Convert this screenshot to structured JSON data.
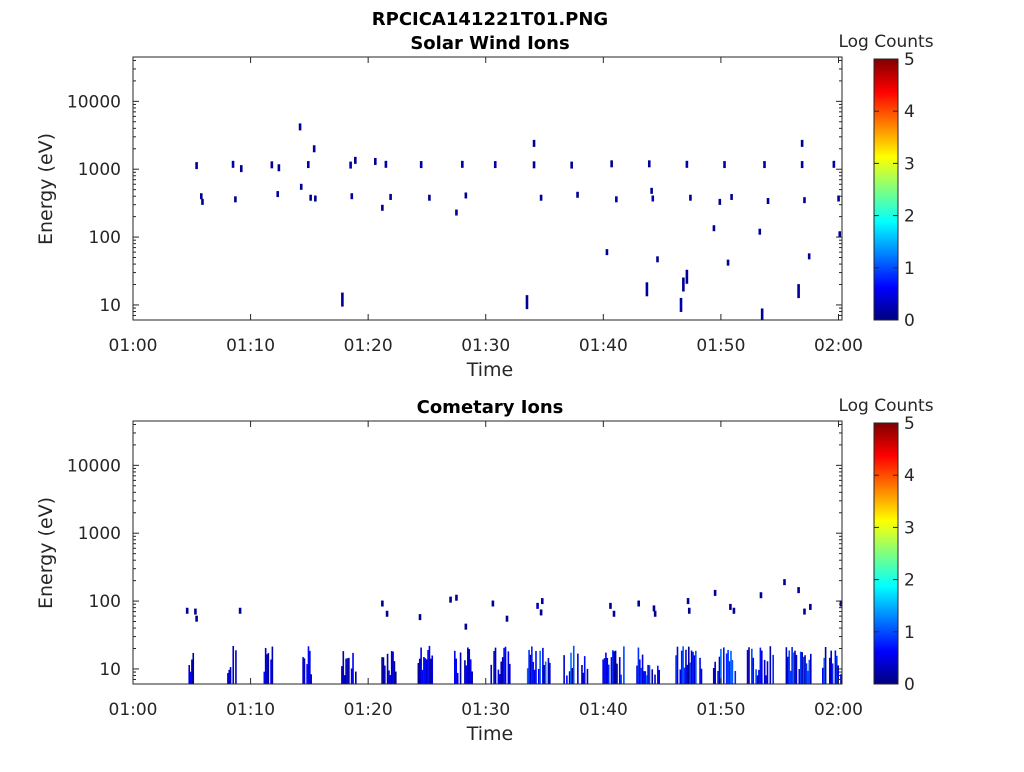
{
  "figure": {
    "filename_title": "RPCICA141221T01.PNG"
  },
  "colormap": {
    "name": "jet",
    "stops": [
      "#00007f",
      "#0000ff",
      "#007fff",
      "#00ffff",
      "#7fff7f",
      "#ffff00",
      "#ff7f00",
      "#ff0000",
      "#7f0000"
    ]
  },
  "chart_data": [
    {
      "type": "heatmap",
      "title": "Solar Wind Ions",
      "xlabel": "Time",
      "ylabel": "Energy (eV)",
      "x_unit": "minutes after 01:00",
      "xlim": [
        0,
        60.3
      ],
      "ylim": [
        6,
        45000
      ],
      "y_scale": "log",
      "xticks": [
        0,
        10,
        20,
        30,
        40,
        50,
        60
      ],
      "xtick_labels": [
        "01:00",
        "01:10",
        "01:20",
        "01:30",
        "01:40",
        "01:50",
        "02:00"
      ],
      "yticks": [
        10,
        100,
        1000,
        10000
      ],
      "ytick_labels": [
        "10",
        "100",
        "1000",
        "10000"
      ],
      "colorbar": {
        "label": "Log Counts",
        "range": [
          0,
          5
        ],
        "ticks": [
          "0",
          "1",
          "2",
          "3",
          "4",
          "5"
        ]
      },
      "cells": [
        [
          5.4,
          1130,
          0.1
        ],
        [
          5.8,
          400,
          0.1
        ],
        [
          5.9,
          330,
          0.1
        ],
        [
          8.5,
          1180,
          0.2
        ],
        [
          8.7,
          360,
          0.1
        ],
        [
          9.2,
          1020,
          0.1
        ],
        [
          11.8,
          1160,
          0.2
        ],
        [
          12.3,
          430,
          0.2
        ],
        [
          12.4,
          1050,
          0.1
        ],
        [
          14.2,
          4200,
          0.1
        ],
        [
          14.3,
          550,
          0.1
        ],
        [
          14.9,
          1170,
          0.2
        ],
        [
          15.1,
          380,
          0.1
        ],
        [
          15.4,
          2000,
          0.1
        ],
        [
          15.5,
          370,
          0.1
        ],
        [
          17.8,
          12,
          0.1
        ],
        [
          18.5,
          1150,
          0.2
        ],
        [
          18.6,
          400,
          0.2
        ],
        [
          18.9,
          1350,
          0.1
        ],
        [
          20.6,
          1300,
          0.1
        ],
        [
          21.2,
          270,
          0.1
        ],
        [
          21.5,
          1180,
          0.2
        ],
        [
          21.9,
          390,
          0.1
        ],
        [
          24.5,
          1170,
          0.2
        ],
        [
          25.2,
          380,
          0.1
        ],
        [
          27.5,
          230,
          0.1
        ],
        [
          28.0,
          1180,
          0.2
        ],
        [
          28.3,
          410,
          0.1
        ],
        [
          30.8,
          1170,
          0.2
        ],
        [
          33.5,
          11,
          0.1
        ],
        [
          34.1,
          2400,
          0.1
        ],
        [
          34.1,
          1160,
          0.1
        ],
        [
          34.7,
          380,
          0.1
        ],
        [
          37.3,
          1150,
          0.1
        ],
        [
          37.8,
          420,
          0.1
        ],
        [
          40.3,
          60,
          0.1
        ],
        [
          40.7,
          1200,
          0.1
        ],
        [
          41.1,
          360,
          0.2
        ],
        [
          43.7,
          17,
          0.1
        ],
        [
          43.9,
          1200,
          0.1
        ],
        [
          44.1,
          480,
          0.1
        ],
        [
          44.2,
          370,
          0.2
        ],
        [
          44.6,
          47,
          0.1
        ],
        [
          46.6,
          10,
          0.2
        ],
        [
          46.8,
          20,
          0.1
        ],
        [
          47.1,
          26,
          0.1
        ],
        [
          47.1,
          1180,
          0.2
        ],
        [
          47.4,
          380,
          0.1
        ],
        [
          49.4,
          135,
          0.1
        ],
        [
          49.9,
          330,
          0.1
        ],
        [
          50.3,
          1170,
          0.2
        ],
        [
          50.6,
          42,
          0.1
        ],
        [
          50.9,
          390,
          0.1
        ],
        [
          53.3,
          120,
          0.1
        ],
        [
          53.5,
          7,
          0.1
        ],
        [
          53.7,
          1170,
          0.2
        ],
        [
          54.0,
          340,
          0.1
        ],
        [
          56.6,
          16,
          0.1
        ],
        [
          56.9,
          2400,
          0.1
        ],
        [
          56.9,
          1170,
          0.2
        ],
        [
          57.1,
          350,
          0.1
        ],
        [
          57.5,
          52,
          0.1
        ],
        [
          59.6,
          1180,
          0.2
        ],
        [
          60.0,
          370,
          0.1
        ],
        [
          60.1,
          110,
          0.1
        ]
      ]
    },
    {
      "type": "heatmap",
      "title": "Cometary Ions",
      "xlabel": "Time",
      "ylabel": "Energy (eV)",
      "x_unit": "minutes after 01:00",
      "xlim": [
        0,
        60.3
      ],
      "ylim": [
        6,
        45000
      ],
      "y_scale": "log",
      "xticks": [
        0,
        10,
        20,
        30,
        40,
        50,
        60
      ],
      "xtick_labels": [
        "01:00",
        "01:10",
        "01:20",
        "01:30",
        "01:40",
        "01:50",
        "02:00"
      ],
      "yticks": [
        10,
        100,
        1000,
        10000
      ],
      "ytick_labels": [
        "10",
        "100",
        "1000",
        "10000"
      ],
      "colorbar": {
        "label": "Log Counts",
        "range": [
          0,
          5
        ],
        "ticks": [
          "0",
          "1",
          "2",
          "3",
          "4",
          "5"
        ]
      },
      "cells": [
        [
          4.6,
          72,
          0.1
        ],
        [
          5.3,
          70,
          0.1
        ],
        [
          5.4,
          55,
          0.1
        ],
        [
          9.1,
          72,
          0.1
        ],
        [
          21.2,
          92,
          0.1
        ],
        [
          21.6,
          65,
          0.1
        ],
        [
          24.4,
          58,
          0.1
        ],
        [
          27.0,
          105,
          0.1
        ],
        [
          27.5,
          112,
          0.1
        ],
        [
          28.3,
          42,
          0.1
        ],
        [
          30.6,
          92,
          0.1
        ],
        [
          31.8,
          55,
          0.1
        ],
        [
          34.4,
          85,
          0.3
        ],
        [
          34.8,
          100,
          0.2
        ],
        [
          34.7,
          68,
          0.1
        ],
        [
          40.6,
          85,
          0.1
        ],
        [
          40.9,
          65,
          0.1
        ],
        [
          43.0,
          92,
          0.1
        ],
        [
          44.3,
          78,
          0.1
        ],
        [
          44.4,
          65,
          0.1
        ],
        [
          47.2,
          100,
          0.1
        ],
        [
          47.3,
          72,
          0.1
        ],
        [
          49.5,
          132,
          0.1
        ],
        [
          50.8,
          82,
          0.1
        ],
        [
          51.1,
          72,
          0.1
        ],
        [
          53.4,
          122,
          0.1
        ],
        [
          55.4,
          190,
          0.1
        ],
        [
          56.6,
          145,
          0.1
        ],
        [
          57.1,
          70,
          0.1
        ],
        [
          57.6,
          82,
          0.1
        ],
        [
          60.2,
          92,
          0.1
        ]
      ],
      "bursts": [
        [
          4.6,
          0.8
        ],
        [
          8.0,
          0.8
        ],
        [
          11.1,
          0.8
        ],
        [
          14.4,
          0.8
        ],
        [
          17.7,
          1.3
        ],
        [
          21.0,
          1.4
        ],
        [
          24.2,
          1.3
        ],
        [
          27.3,
          1.6
        ],
        [
          30.4,
          1.7
        ],
        [
          33.5,
          2.0
        ],
        [
          36.6,
          2.1
        ],
        [
          39.8,
          2.0
        ],
        [
          42.8,
          2.0
        ],
        [
          46.0,
          2.4
        ],
        [
          49.2,
          2.2
        ],
        [
          52.2,
          2.3
        ],
        [
          55.5,
          2.2
        ],
        [
          58.6,
          1.9
        ]
      ]
    }
  ]
}
